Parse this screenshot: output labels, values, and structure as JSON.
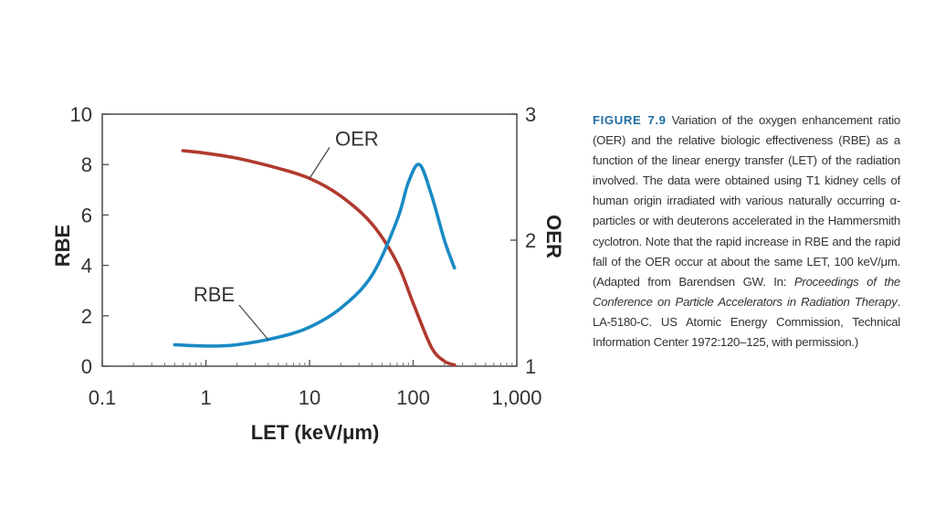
{
  "chart_data": {
    "type": "line",
    "xlabel": "LET (keV/μm)",
    "x_scale": "log",
    "xlim": [
      0.1,
      1000
    ],
    "x_ticks": [
      "0.1",
      "1",
      "10",
      "100",
      "1,000"
    ],
    "y_left": {
      "label": "RBE",
      "lim": [
        0,
        10
      ],
      "ticks": [
        "0",
        "2",
        "4",
        "6",
        "8",
        "10"
      ]
    },
    "y_right": {
      "label": "OER",
      "lim": [
        1,
        3
      ],
      "ticks": [
        "1",
        "2",
        "3"
      ]
    },
    "series": [
      {
        "name": "OER",
        "axis": "right",
        "color": "#b03a2e",
        "x": [
          0.6,
          1,
          2,
          5,
          10,
          20,
          40,
          70,
          100,
          150,
          200,
          250
        ],
        "y": [
          2.71,
          2.69,
          2.65,
          2.57,
          2.49,
          2.35,
          2.13,
          1.82,
          1.5,
          1.15,
          1.04,
          1.01
        ]
      },
      {
        "name": "RBE",
        "axis": "left",
        "color": "#1a8ac4",
        "x": [
          0.5,
          1,
          2,
          5,
          10,
          20,
          40,
          70,
          90,
          115,
          150,
          200,
          250
        ],
        "y": [
          0.85,
          0.8,
          0.85,
          1.15,
          1.55,
          2.3,
          3.6,
          5.8,
          7.3,
          8.0,
          6.8,
          5.0,
          3.9
        ]
      }
    ],
    "annotations": [
      {
        "text": "OER",
        "series": "OER"
      },
      {
        "text": "RBE",
        "series": "RBE"
      }
    ]
  },
  "caption": {
    "figure_label": "FIGURE 7.9",
    "text_1": "Variation of the oxygen enhancement ratio (OER) and the relative biologic effectiveness (RBE) as a function of the linear energy transfer (LET) of the radiation involved. The data were obtained using T1 kidney cells of human origin irradiated with various naturally occurring α-particles or with deuterons accelerated in the Hammersmith cyclotron. Note that the rapid increase in RBE and the rapid fall of the OER occur at about the same LET, 100 keV/μm. (Adapted from Barendsen GW. In: ",
    "italic": "Proceedings of the Conference on Particle Accelerators in Radiation Therapy",
    "text_2": ". LA-5180-C. US Atomic Energy Commission, Technical Information Center 1972:120–125, with permission.)"
  }
}
